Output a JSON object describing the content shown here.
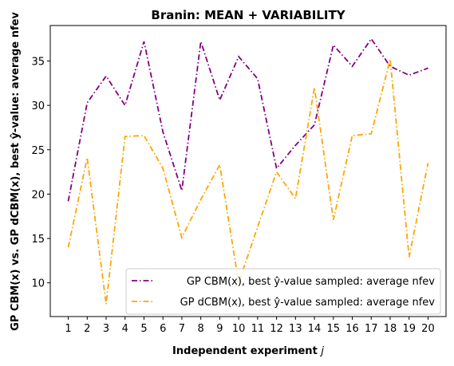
{
  "chart_data": {
    "type": "line",
    "title": "Branin: MEAN + VARIABILITY",
    "xlabel_text": "Independent experiment ",
    "xlabel_var": "j",
    "ylabel": "GP CBM(x) vs. GP dCBM(x), best ŷ-value: average nfev",
    "x": [
      1,
      2,
      3,
      4,
      5,
      6,
      7,
      8,
      9,
      10,
      11,
      12,
      13,
      14,
      15,
      16,
      17,
      18,
      19,
      20
    ],
    "x_ticks": [
      "1",
      "2",
      "3",
      "4",
      "5",
      "6",
      "7",
      "8",
      "9",
      "10",
      "11",
      "12",
      "13",
      "14",
      "15",
      "16",
      "17",
      "18",
      "19",
      "20"
    ],
    "y_ticks": [
      10,
      15,
      20,
      25,
      30,
      35
    ],
    "xlim": [
      0.05,
      20.95
    ],
    "ylim": [
      6.2,
      39.0
    ],
    "grid": false,
    "legend_position": "lower-right",
    "series": [
      {
        "name": "GP CBM(x), best ŷ-value sampled: average nfev",
        "color": "#800080",
        "linestyle": "dashdot",
        "values": [
          19.2,
          30.3,
          33.3,
          30.0,
          37.2,
          27.0,
          20.4,
          37.2,
          30.6,
          35.5,
          33.0,
          22.9,
          25.5,
          27.8,
          36.8,
          34.4,
          37.5,
          34.4,
          33.4,
          34.2
        ]
      },
      {
        "name": "GP dCBM(x), best ŷ-value sampled: average nfev",
        "color": "#FFA500",
        "linestyle": "dashdot",
        "values": [
          14.0,
          24.1,
          7.6,
          26.5,
          26.6,
          22.9,
          15.1,
          19.4,
          23.3,
          10.0,
          16.3,
          22.5,
          19.5,
          32.0,
          17.1,
          26.6,
          26.8,
          35.2,
          12.9,
          23.5
        ]
      }
    ]
  }
}
